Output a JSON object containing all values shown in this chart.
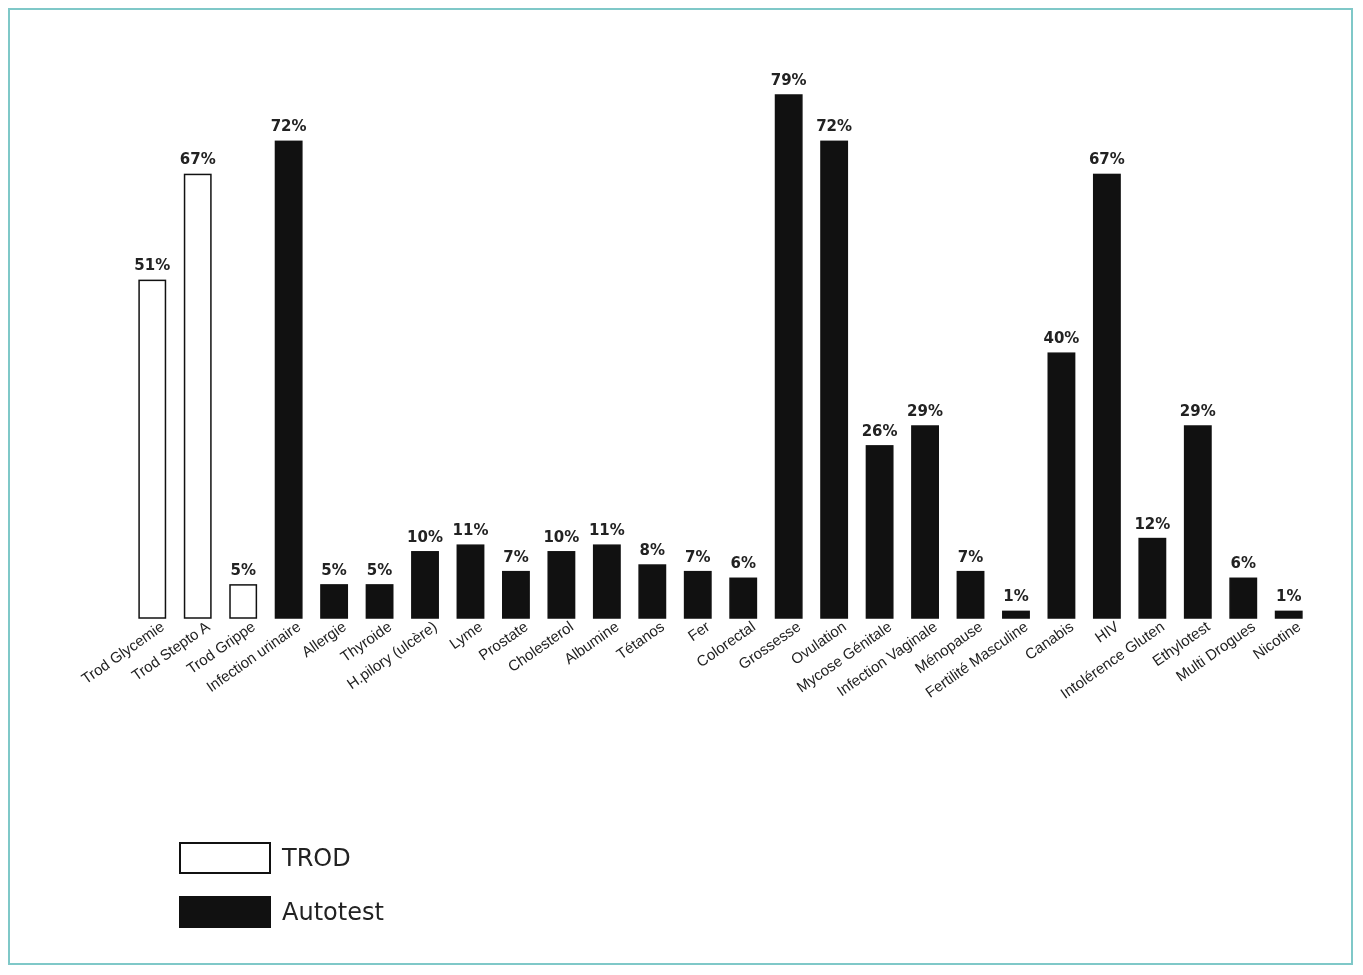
{
  "chart_data": {
    "type": "bar",
    "categories": [
      "Trod Glycemie",
      "Trod Stepto A",
      "Trod Grippe",
      "Infection urinaire",
      "Allergie",
      "Thyroide",
      "H.pilory (ulcère)",
      "Lyme",
      "Prostate",
      "Cholesterol",
      "Albumine",
      "Tétanos",
      "Fer",
      "Colorectal",
      "Grossesse",
      "Ovulation",
      "Mycose Génitale",
      "Infection Vaginale",
      "Ménopause",
      "Fertilité Masculine",
      "Canabis",
      "HIV",
      "Intolérence Gluten",
      "Ethylotest",
      "Multi Drogues",
      "Nicotine"
    ],
    "series": [
      {
        "name": "TROD",
        "color": "#ffffff",
        "values": [
          51,
          67,
          5,
          null,
          null,
          null,
          null,
          null,
          null,
          null,
          null,
          null,
          null,
          null,
          null,
          null,
          null,
          null,
          null,
          null,
          null,
          null,
          null,
          null,
          null,
          null
        ],
        "value_labels": [
          "51%",
          "67%",
          "5%",
          null,
          null,
          null,
          null,
          null,
          null,
          null,
          null,
          null,
          null,
          null,
          null,
          null,
          null,
          null,
          null,
          null,
          null,
          null,
          null,
          null,
          null,
          null
        ]
      },
      {
        "name": "Autotest",
        "color": "#111111",
        "values": [
          null,
          null,
          null,
          72,
          5,
          5,
          10,
          11,
          7,
          10,
          11,
          8,
          7,
          6,
          79,
          72,
          26,
          29,
          7,
          1,
          40,
          67,
          12,
          29,
          6,
          1
        ],
        "value_labels": [
          null,
          null,
          null,
          "72%",
          "5%",
          "5%",
          "10%",
          "11%",
          "7%",
          "10%",
          "11%",
          "8%",
          "7%",
          "6%",
          "79%",
          "72%",
          "26%",
          "29%",
          "7%",
          "1%",
          "40%",
          "67%",
          "12%",
          "29%",
          "6%",
          "1%"
        ]
      }
    ],
    "legend": "bottom left"
  }
}
